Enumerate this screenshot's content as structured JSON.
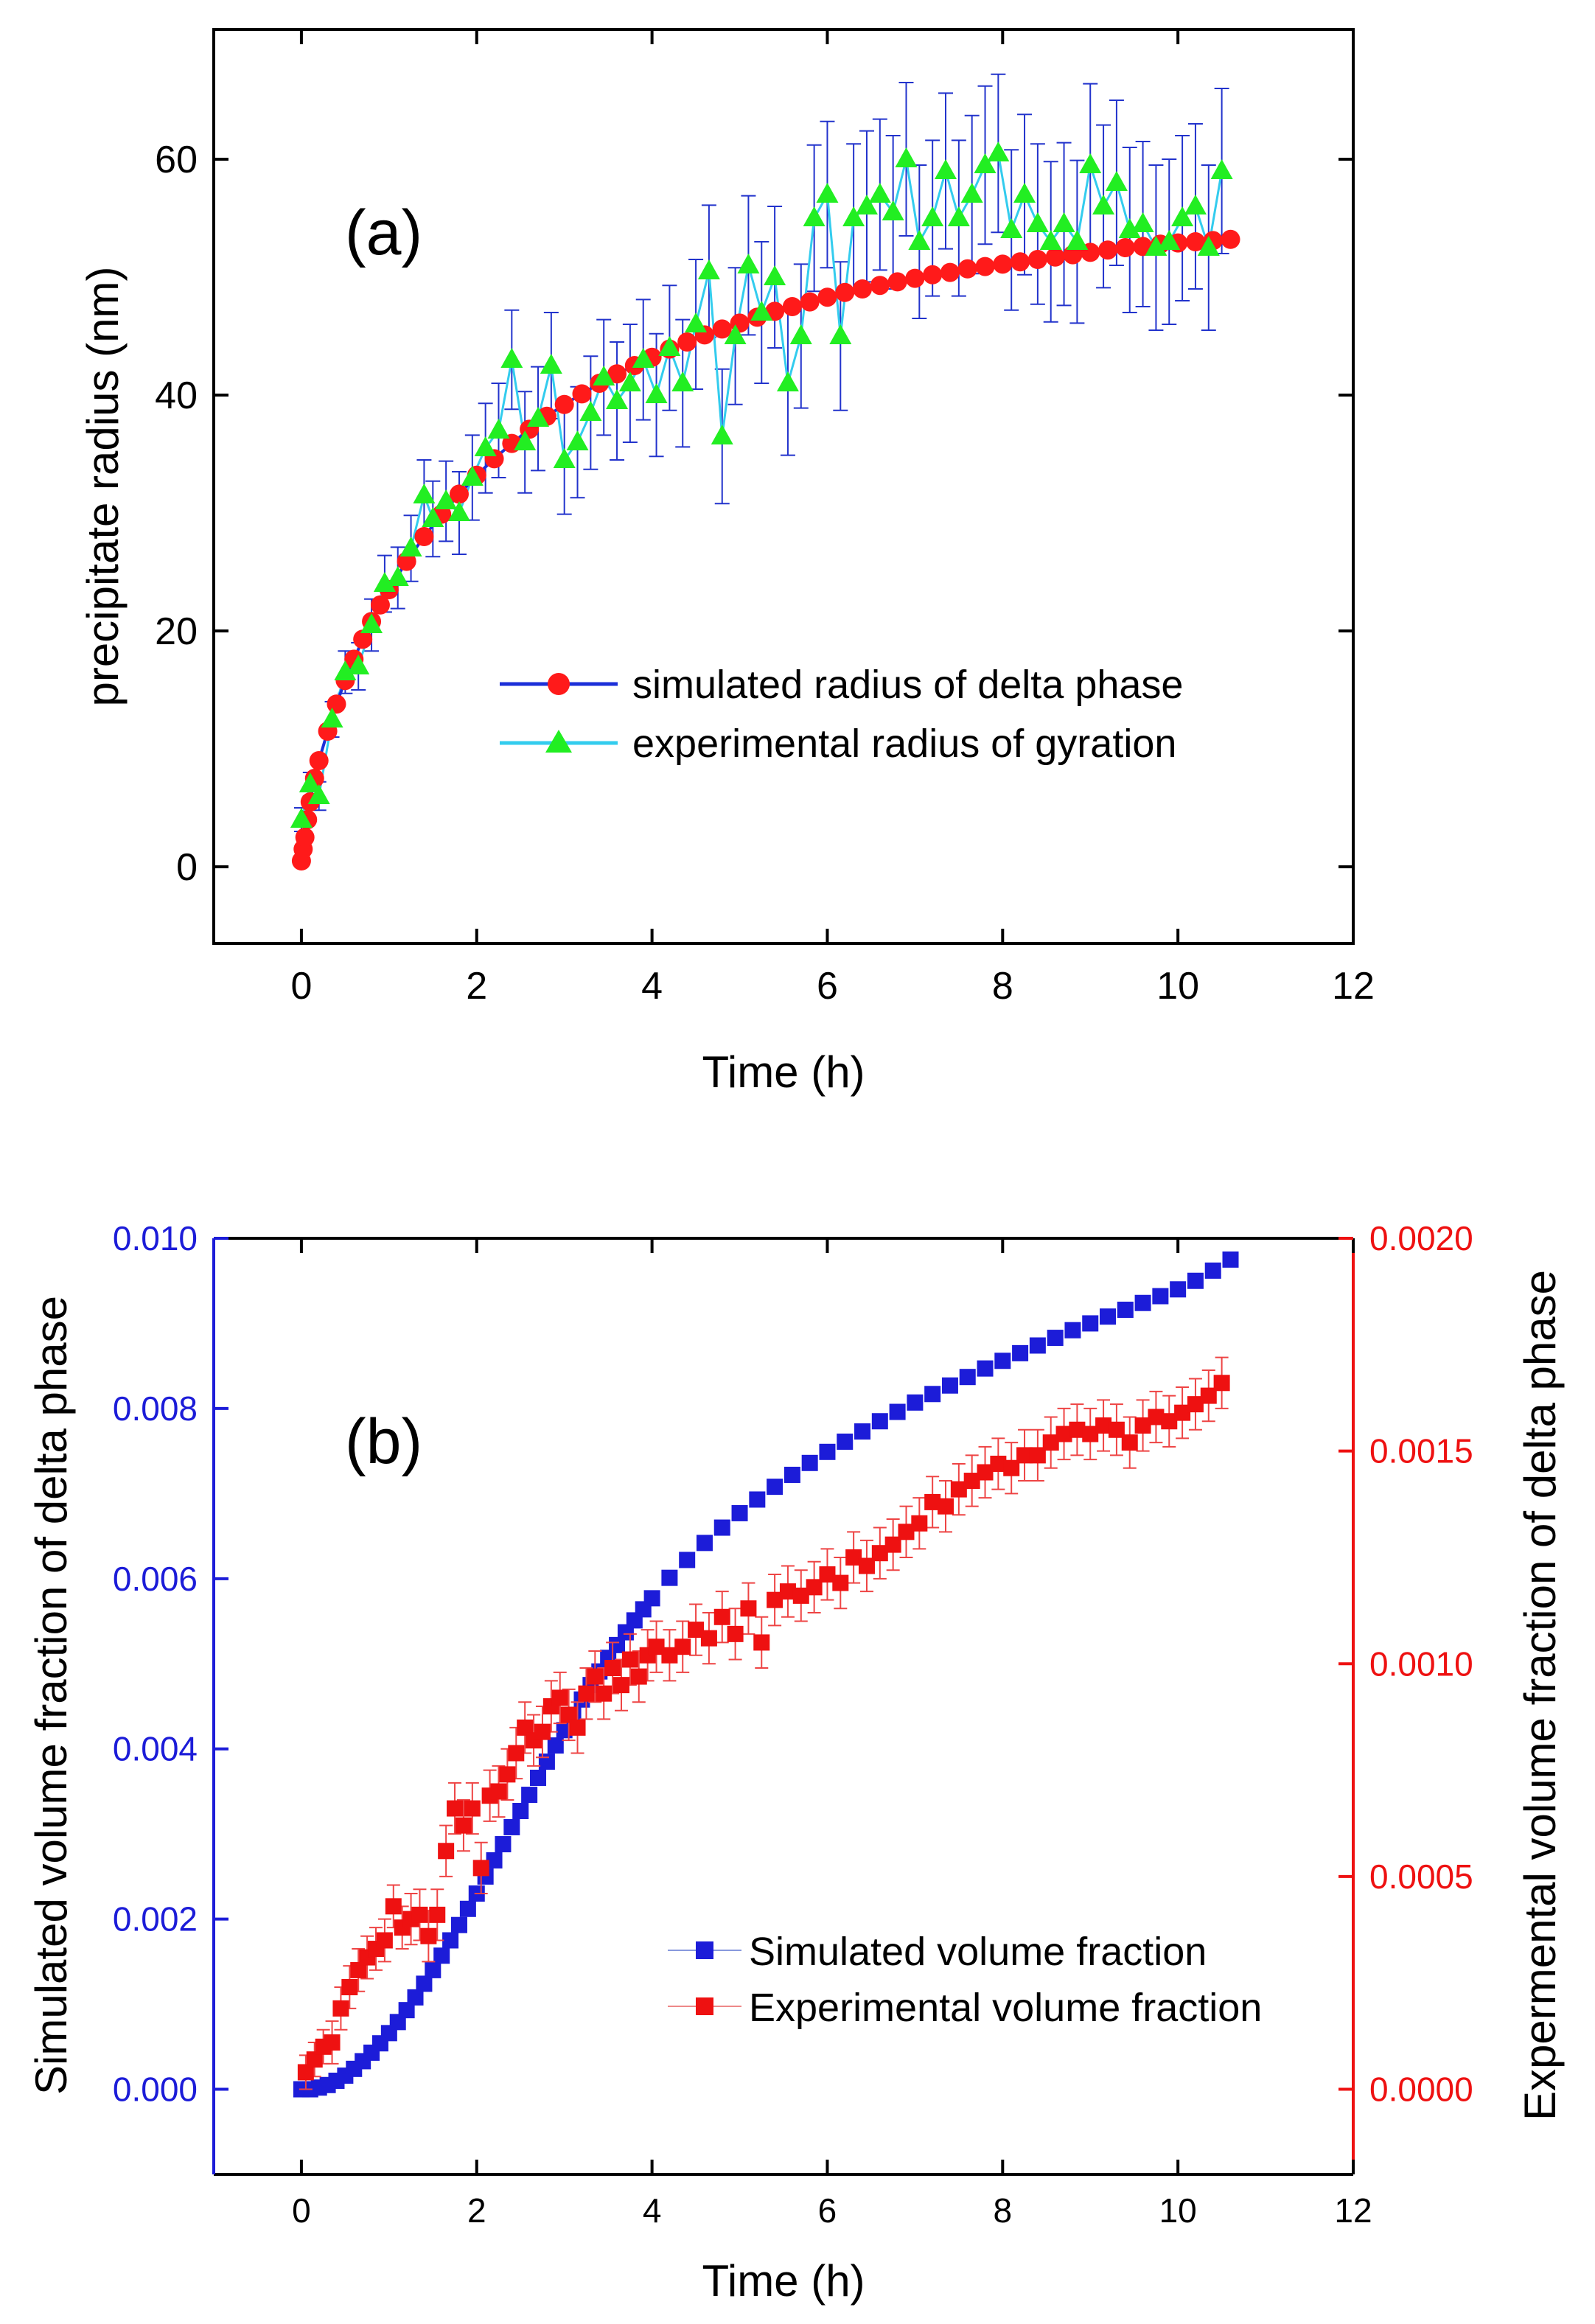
{
  "chart_data": [
    {
      "type": "line",
      "panel_label": "(a)",
      "xlabel": "Time (h)",
      "ylabel": "precipitate radius (nm)",
      "xlim": [
        -1,
        12
      ],
      "ylim": [
        -6.5,
        71
      ],
      "xticks": [
        0,
        2,
        4,
        6,
        8,
        10,
        12
      ],
      "yticks": [
        0,
        20,
        40,
        60
      ],
      "legend_position": "lower-right",
      "series": [
        {
          "name": "simulated radius of delta phase",
          "marker": "circle",
          "marker_color": "#ff1a1a",
          "line_color": "#1c2fd8",
          "x": [
            0.0,
            0.02,
            0.04,
            0.07,
            0.1,
            0.15,
            0.2,
            0.3,
            0.4,
            0.5,
            0.6,
            0.7,
            0.8,
            0.9,
            1.0,
            1.2,
            1.4,
            1.6,
            1.8,
            2.0,
            2.2,
            2.4,
            2.6,
            2.8,
            3.0,
            3.2,
            3.4,
            3.6,
            3.8,
            4.0,
            4.2,
            4.4,
            4.6,
            4.8,
            5.0,
            5.2,
            5.4,
            5.6,
            5.8,
            6.0,
            6.2,
            6.4,
            6.6,
            6.8,
            7.0,
            7.2,
            7.4,
            7.6,
            7.8,
            8.0,
            8.2,
            8.4,
            8.6,
            8.8,
            9.0,
            9.2,
            9.4,
            9.6,
            9.8,
            10.0,
            10.2,
            10.4,
            10.6
          ],
          "values": [
            0.5,
            1.5,
            2.5,
            4.0,
            5.5,
            7.5,
            9.0,
            11.5,
            13.8,
            15.8,
            17.6,
            19.3,
            20.8,
            22.2,
            23.5,
            25.9,
            28.0,
            29.9,
            31.6,
            33.2,
            34.6,
            35.9,
            37.1,
            38.2,
            39.2,
            40.1,
            41.0,
            41.8,
            42.5,
            43.2,
            43.9,
            44.5,
            45.1,
            45.6,
            46.1,
            46.6,
            47.1,
            47.5,
            47.9,
            48.3,
            48.7,
            49.0,
            49.3,
            49.6,
            49.9,
            50.2,
            50.4,
            50.7,
            50.9,
            51.1,
            51.3,
            51.5,
            51.7,
            51.9,
            52.1,
            52.3,
            52.5,
            52.6,
            52.8,
            52.9,
            53.0,
            53.1,
            53.2
          ]
        },
        {
          "name": "experimental radius of gyration",
          "marker": "triangle",
          "marker_color": "#22ee22",
          "line_color": "#33ccee",
          "x": [
            0.0,
            0.1,
            0.2,
            0.35,
            0.5,
            0.65,
            0.8,
            0.95,
            1.1,
            1.25,
            1.4,
            1.5,
            1.65,
            1.8,
            1.95,
            2.1,
            2.25,
            2.4,
            2.55,
            2.7,
            2.85,
            3.0,
            3.15,
            3.3,
            3.45,
            3.6,
            3.75,
            3.9,
            4.05,
            4.2,
            4.35,
            4.5,
            4.65,
            4.8,
            4.95,
            5.1,
            5.25,
            5.4,
            5.55,
            5.7,
            5.85,
            6.0,
            6.15,
            6.3,
            6.45,
            6.6,
            6.75,
            6.9,
            7.05,
            7.2,
            7.35,
            7.5,
            7.65,
            7.8,
            7.95,
            8.1,
            8.25,
            8.4,
            8.55,
            8.7,
            8.85,
            9.0,
            9.15,
            9.3,
            9.45,
            9.6,
            9.75,
            9.9,
            10.05,
            10.2,
            10.35,
            10.5
          ],
          "values": [
            4.0,
            7.0,
            6.0,
            12.5,
            16.5,
            17.0,
            20.5,
            24.0,
            24.5,
            27.0,
            31.5,
            29.5,
            31.0,
            30.0,
            33.0,
            35.5,
            37.0,
            43.0,
            36.0,
            38.0,
            42.5,
            34.5,
            36.0,
            38.5,
            41.5,
            39.5,
            41.0,
            43.0,
            40.0,
            44.0,
            41.0,
            46.0,
            50.5,
            36.5,
            45.0,
            51.0,
            47.0,
            50.0,
            41.0,
            45.0,
            55.0,
            57.0,
            45.0,
            55.0,
            56.0,
            57.0,
            55.5,
            60.0,
            53.0,
            55.0,
            59.0,
            55.0,
            57.0,
            59.5,
            60.5,
            54.0,
            57.0,
            54.5,
            53.0,
            54.5,
            53.0,
            59.5,
            56.0,
            58.0,
            54.0,
            54.5,
            52.5,
            53.0,
            55.0,
            56.0,
            52.5,
            59.0
          ],
          "error": [
            1.0,
            1.0,
            1.2,
            1.5,
            1.8,
            2.0,
            2.2,
            2.4,
            2.6,
            2.8,
            3.0,
            3.2,
            3.4,
            3.5,
            3.6,
            3.8,
            4.0,
            4.2,
            4.3,
            4.4,
            4.5,
            4.6,
            4.7,
            4.8,
            4.9,
            5.0,
            5.0,
            5.1,
            5.2,
            5.3,
            5.4,
            5.5,
            5.6,
            5.7,
            5.8,
            5.9,
            6.0,
            6.0,
            6.1,
            6.1,
            6.2,
            6.2,
            6.3,
            6.3,
            6.4,
            6.4,
            6.5,
            6.5,
            6.5,
            6.6,
            6.6,
            6.6,
            6.7,
            6.7,
            6.7,
            6.8,
            6.8,
            6.8,
            6.8,
            6.9,
            6.9,
            6.9,
            6.9,
            7.0,
            7.0,
            7.0,
            7.0,
            7.0,
            7.0,
            7.0,
            7.0,
            7.0
          ]
        }
      ]
    },
    {
      "type": "scatter",
      "panel_label": "(b)",
      "xlabel": "Time (h)",
      "ylabel_left": "Simulated volume fraction of delta phase",
      "ylabel_right": "Expermental volume fraction of delta phase",
      "xlim": [
        -1,
        12
      ],
      "ylim_left": [
        -0.001,
        0.01
      ],
      "ylim_right": [
        -0.0002,
        0.002
      ],
      "xticks": [
        0,
        2,
        4,
        6,
        8,
        10,
        12
      ],
      "yticks_left": [
        "0.000",
        "0.002",
        "0.004",
        "0.006",
        "0.008",
        "0.010"
      ],
      "yticks_right": [
        "0.0000",
        "0.0005",
        "0.0010",
        "0.0015",
        "0.0020"
      ],
      "left_axis_color": "#1c1cd8",
      "right_axis_color": "#ee1111",
      "legend_position": "lower-right",
      "series": [
        {
          "name": "Simulated volume fraction",
          "axis": "left",
          "marker": "square",
          "marker_color": "#1c1cd8",
          "x": [
            0.0,
            0.1,
            0.2,
            0.3,
            0.4,
            0.5,
            0.6,
            0.7,
            0.8,
            0.9,
            1.0,
            1.1,
            1.2,
            1.3,
            1.4,
            1.5,
            1.6,
            1.7,
            1.8,
            1.9,
            2.0,
            2.1,
            2.2,
            2.3,
            2.4,
            2.5,
            2.6,
            2.7,
            2.8,
            2.9,
            3.0,
            3.1,
            3.2,
            3.3,
            3.4,
            3.5,
            3.6,
            3.7,
            3.8,
            3.9,
            4.0,
            4.2,
            4.4,
            4.6,
            4.8,
            5.0,
            5.2,
            5.4,
            5.6,
            5.8,
            6.0,
            6.2,
            6.4,
            6.6,
            6.8,
            7.0,
            7.2,
            7.4,
            7.6,
            7.8,
            8.0,
            8.2,
            8.4,
            8.6,
            8.8,
            9.0,
            9.2,
            9.4,
            9.6,
            9.8,
            10.0,
            10.2,
            10.4,
            10.6
          ],
          "values": [
            0.0,
            0.0,
            2e-05,
            5e-05,
            0.0001,
            0.00016,
            0.00024,
            0.00033,
            0.00043,
            0.00054,
            0.00066,
            0.00079,
            0.00093,
            0.00108,
            0.00124,
            0.0014,
            0.00157,
            0.00175,
            0.00193,
            0.00212,
            0.0023,
            0.0025,
            0.00269,
            0.00288,
            0.00308,
            0.00327,
            0.00346,
            0.00366,
            0.00385,
            0.00404,
            0.00422,
            0.0044,
            0.00458,
            0.00475,
            0.00491,
            0.00507,
            0.00522,
            0.00537,
            0.00551,
            0.00564,
            0.00577,
            0.00601,
            0.00622,
            0.00642,
            0.0066,
            0.00677,
            0.00693,
            0.00708,
            0.00722,
            0.00736,
            0.00749,
            0.00761,
            0.00773,
            0.00785,
            0.00796,
            0.00807,
            0.00817,
            0.00827,
            0.00837,
            0.00847,
            0.00856,
            0.00865,
            0.00874,
            0.00883,
            0.00892,
            0.009,
            0.00908,
            0.00916,
            0.00924,
            0.00932,
            0.0094,
            0.0095,
            0.00962,
            0.00975
          ]
        },
        {
          "name": "Experimental volume fraction",
          "axis": "right",
          "marker": "square",
          "marker_color": "#ee1111",
          "x": [
            0.05,
            0.15,
            0.25,
            0.35,
            0.45,
            0.55,
            0.65,
            0.75,
            0.85,
            0.95,
            1.05,
            1.15,
            1.25,
            1.35,
            1.45,
            1.55,
            1.65,
            1.75,
            1.85,
            1.95,
            2.05,
            2.15,
            2.25,
            2.35,
            2.45,
            2.55,
            2.65,
            2.75,
            2.85,
            2.95,
            3.05,
            3.15,
            3.25,
            3.35,
            3.45,
            3.55,
            3.65,
            3.75,
            3.85,
            3.95,
            4.05,
            4.2,
            4.35,
            4.5,
            4.65,
            4.8,
            4.95,
            5.1,
            5.25,
            5.4,
            5.55,
            5.7,
            5.85,
            6.0,
            6.15,
            6.3,
            6.45,
            6.6,
            6.75,
            6.9,
            7.05,
            7.2,
            7.35,
            7.5,
            7.65,
            7.8,
            7.95,
            8.1,
            8.25,
            8.4,
            8.55,
            8.7,
            8.85,
            9.0,
            9.15,
            9.3,
            9.45,
            9.6,
            9.75,
            9.9,
            10.05,
            10.2,
            10.35,
            10.5
          ],
          "values": [
            4e-05,
            7e-05,
            0.0001,
            0.00011,
            0.00019,
            0.00024,
            0.00028,
            0.00031,
            0.00033,
            0.00035,
            0.00043,
            0.00038,
            0.0004,
            0.00041,
            0.00036,
            0.00041,
            0.00056,
            0.00066,
            0.00062,
            0.00066,
            0.00052,
            0.00069,
            0.0007,
            0.00074,
            0.00079,
            0.00085,
            0.00082,
            0.00084,
            0.0009,
            0.00092,
            0.00088,
            0.00085,
            0.00093,
            0.00097,
            0.00093,
            0.00099,
            0.00095,
            0.00101,
            0.00097,
            0.00102,
            0.00104,
            0.00102,
            0.00104,
            0.00108,
            0.00106,
            0.00111,
            0.00107,
            0.00113,
            0.00105,
            0.00115,
            0.00117,
            0.00116,
            0.00118,
            0.00121,
            0.00119,
            0.00125,
            0.00123,
            0.00126,
            0.00128,
            0.00131,
            0.00133,
            0.00138,
            0.00137,
            0.00141,
            0.00143,
            0.00145,
            0.00147,
            0.00146,
            0.00149,
            0.00149,
            0.00152,
            0.00154,
            0.00155,
            0.00154,
            0.00156,
            0.00155,
            0.00152,
            0.00156,
            0.00158,
            0.00157,
            0.00159,
            0.00161,
            0.00163,
            0.00166
          ],
          "error": [
            4e-05,
            4e-05,
            4e-05,
            5e-05,
            5e-05,
            5e-05,
            5e-05,
            5e-05,
            5e-05,
            5e-05,
            5e-05,
            5e-05,
            6e-05,
            6e-05,
            6e-05,
            6e-05,
            6e-05,
            6e-05,
            6e-05,
            6e-05,
            6e-05,
            6e-05,
            6e-05,
            6e-05,
            6e-05,
            6e-05,
            6e-05,
            6e-05,
            6e-05,
            6e-05,
            6e-05,
            6e-05,
            6e-05,
            6e-05,
            6e-05,
            6e-05,
            6e-05,
            6e-05,
            6e-05,
            6e-05,
            6e-05,
            6e-05,
            6e-05,
            6e-05,
            6e-05,
            6e-05,
            6e-05,
            6e-05,
            6e-05,
            6e-05,
            6e-05,
            6e-05,
            6e-05,
            6e-05,
            6e-05,
            6e-05,
            6e-05,
            6e-05,
            6e-05,
            6e-05,
            6e-05,
            6e-05,
            6e-05,
            6e-05,
            6e-05,
            6e-05,
            6e-05,
            6e-05,
            6e-05,
            6e-05,
            6e-05,
            6e-05,
            6e-05,
            6e-05,
            6e-05,
            6e-05,
            6e-05,
            6e-05,
            6e-05,
            6e-05,
            6e-05,
            6e-05,
            6e-05,
            6e-05
          ]
        }
      ]
    }
  ]
}
